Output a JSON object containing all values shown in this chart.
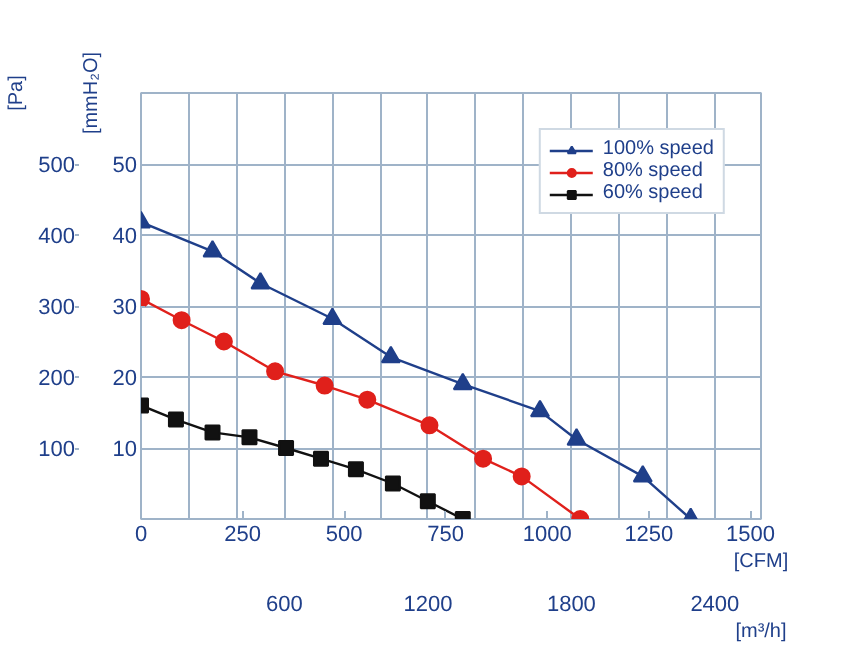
{
  "chart_data": {
    "type": "line",
    "xlabel": "[CFM]",
    "x2label": "[m³/h]",
    "ylabel": "[Pa]",
    "y2label": "[mmH₂O]",
    "xlim": [
      0,
      1526
    ],
    "xticks": [
      0,
      250,
      500,
      750,
      1000,
      1250,
      1500
    ],
    "x2lim": [
      0,
      2593
    ],
    "x2ticks": [
      {
        "value": 200,
        "label": null
      },
      {
        "value": 400,
        "label": null
      },
      600,
      {
        "value": 800,
        "label": null
      },
      {
        "value": 1000,
        "label": null
      },
      1200,
      {
        "value": 1400,
        "label": null
      },
      {
        "value": 1600,
        "label": null
      },
      1800,
      {
        "value": 2000,
        "label": null
      },
      {
        "value": 2200,
        "label": null
      },
      2400
    ],
    "ylim": [
      0,
      600
    ],
    "yticks": [
      100,
      200,
      300,
      400,
      500
    ],
    "y2lim": [
      0,
      60
    ],
    "y2ticks": [
      10,
      20,
      30,
      40,
      50
    ],
    "grid": true,
    "legend": "top right",
    "line_style": "solid",
    "series": [
      {
        "name": "100% speed",
        "color": "#1f3f8a",
        "marker": "triangle",
        "x": [
          0,
          176,
          294,
          471,
          615,
          792,
          982,
          1072,
          1235,
          1353
        ],
        "values": [
          418,
          377,
          332,
          282,
          228,
          190,
          152,
          112,
          60,
          0
        ]
      },
      {
        "name": "80% speed",
        "color": "#e0201b",
        "marker": "circle",
        "x": [
          0,
          100,
          204,
          330,
          452,
          557,
          710,
          842,
          937,
          1081
        ],
        "values": [
          310,
          280,
          250,
          208,
          188,
          168,
          132,
          85,
          60,
          0
        ]
      },
      {
        "name": "60% speed",
        "color": "#111111",
        "marker": "square",
        "x": [
          0,
          86,
          176,
          267,
          357,
          443,
          529,
          620,
          706,
          792
        ],
        "values": [
          160,
          140,
          122,
          115,
          100,
          85,
          70,
          50,
          25,
          0
        ]
      }
    ]
  }
}
